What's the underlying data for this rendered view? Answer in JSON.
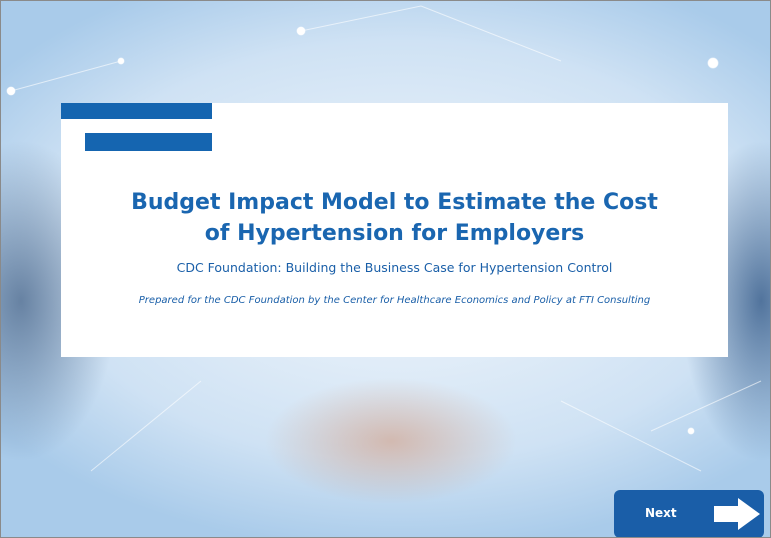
{
  "slide": {
    "title": "Budget Impact Model to Estimate the Cost of Hypertension for Employers",
    "subtitle": "CDC Foundation: Building the Business Case for Hypertension Control",
    "prepared_by": "Prepared for the CDC Foundation by the Center for Healthcare Economics and Policy at FTI Consulting"
  },
  "navigation": {
    "next": "Next"
  }
}
